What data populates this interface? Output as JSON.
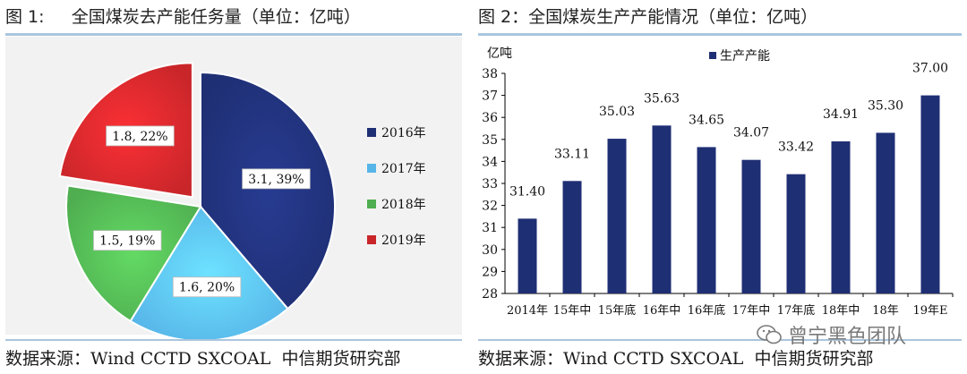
{
  "figures": {
    "left_title": "图 1:     全国煤炭去产能任务量（单位：亿吨）",
    "right_title": "图 2：全国煤炭生产产能情况（单位：亿吨）",
    "left_source": "数据来源：Wind CCTD SXCOAL  中信期货研究部",
    "right_source": "数据来源：Wind CCTD SXCOAL  中信期货研究部"
  },
  "watermark": {
    "text": "曾宁黑色团队",
    "icon": "wechat-logo-icon"
  },
  "chart_data": [
    {
      "type": "pie",
      "title": "",
      "slices": [
        {
          "label": "2016年",
          "value": 3.1,
          "percent": 39,
          "data_label": "3.1, 39%",
          "color": "#1f2f74"
        },
        {
          "label": "2017年",
          "value": 1.6,
          "percent": 20,
          "data_label": "1.6, 20%",
          "color": "#57b5e8"
        },
        {
          "label": "2018年",
          "value": 1.5,
          "percent": 19,
          "data_label": "1.5, 19%",
          "color": "#4fae50"
        },
        {
          "label": "2019年",
          "value": 1.8,
          "percent": 22,
          "data_label": "1.8, 22%",
          "color": "#c9262a",
          "exploded": true
        }
      ],
      "legend": [
        "2016年",
        "2017年",
        "2018年",
        "2019年"
      ],
      "legend_position": "right"
    },
    {
      "type": "bar",
      "title": "",
      "ylabel": "亿吨",
      "categories": [
        "2014年",
        "15年中",
        "15年底",
        "16年中",
        "16年底",
        "17年中",
        "17年底",
        "18年中",
        "18年",
        "19年E"
      ],
      "series": [
        {
          "name": "生产产能",
          "values": [
            31.4,
            33.11,
            35.03,
            35.63,
            34.65,
            34.07,
            33.42,
            34.91,
            35.3,
            37.0
          ],
          "color": "#1f2f74"
        }
      ],
      "data_labels": [
        "31.40",
        "33.11",
        "35.03",
        "35.63",
        "34.65",
        "34.07",
        "33.42",
        "34.91",
        "35.30",
        "37.00"
      ],
      "ylim": [
        28,
        38
      ],
      "yticks": [
        "28",
        "29",
        "30",
        "31",
        "32",
        "33",
        "34",
        "35",
        "36",
        "37",
        "38"
      ],
      "grid": false,
      "legend_position": "top"
    }
  ]
}
